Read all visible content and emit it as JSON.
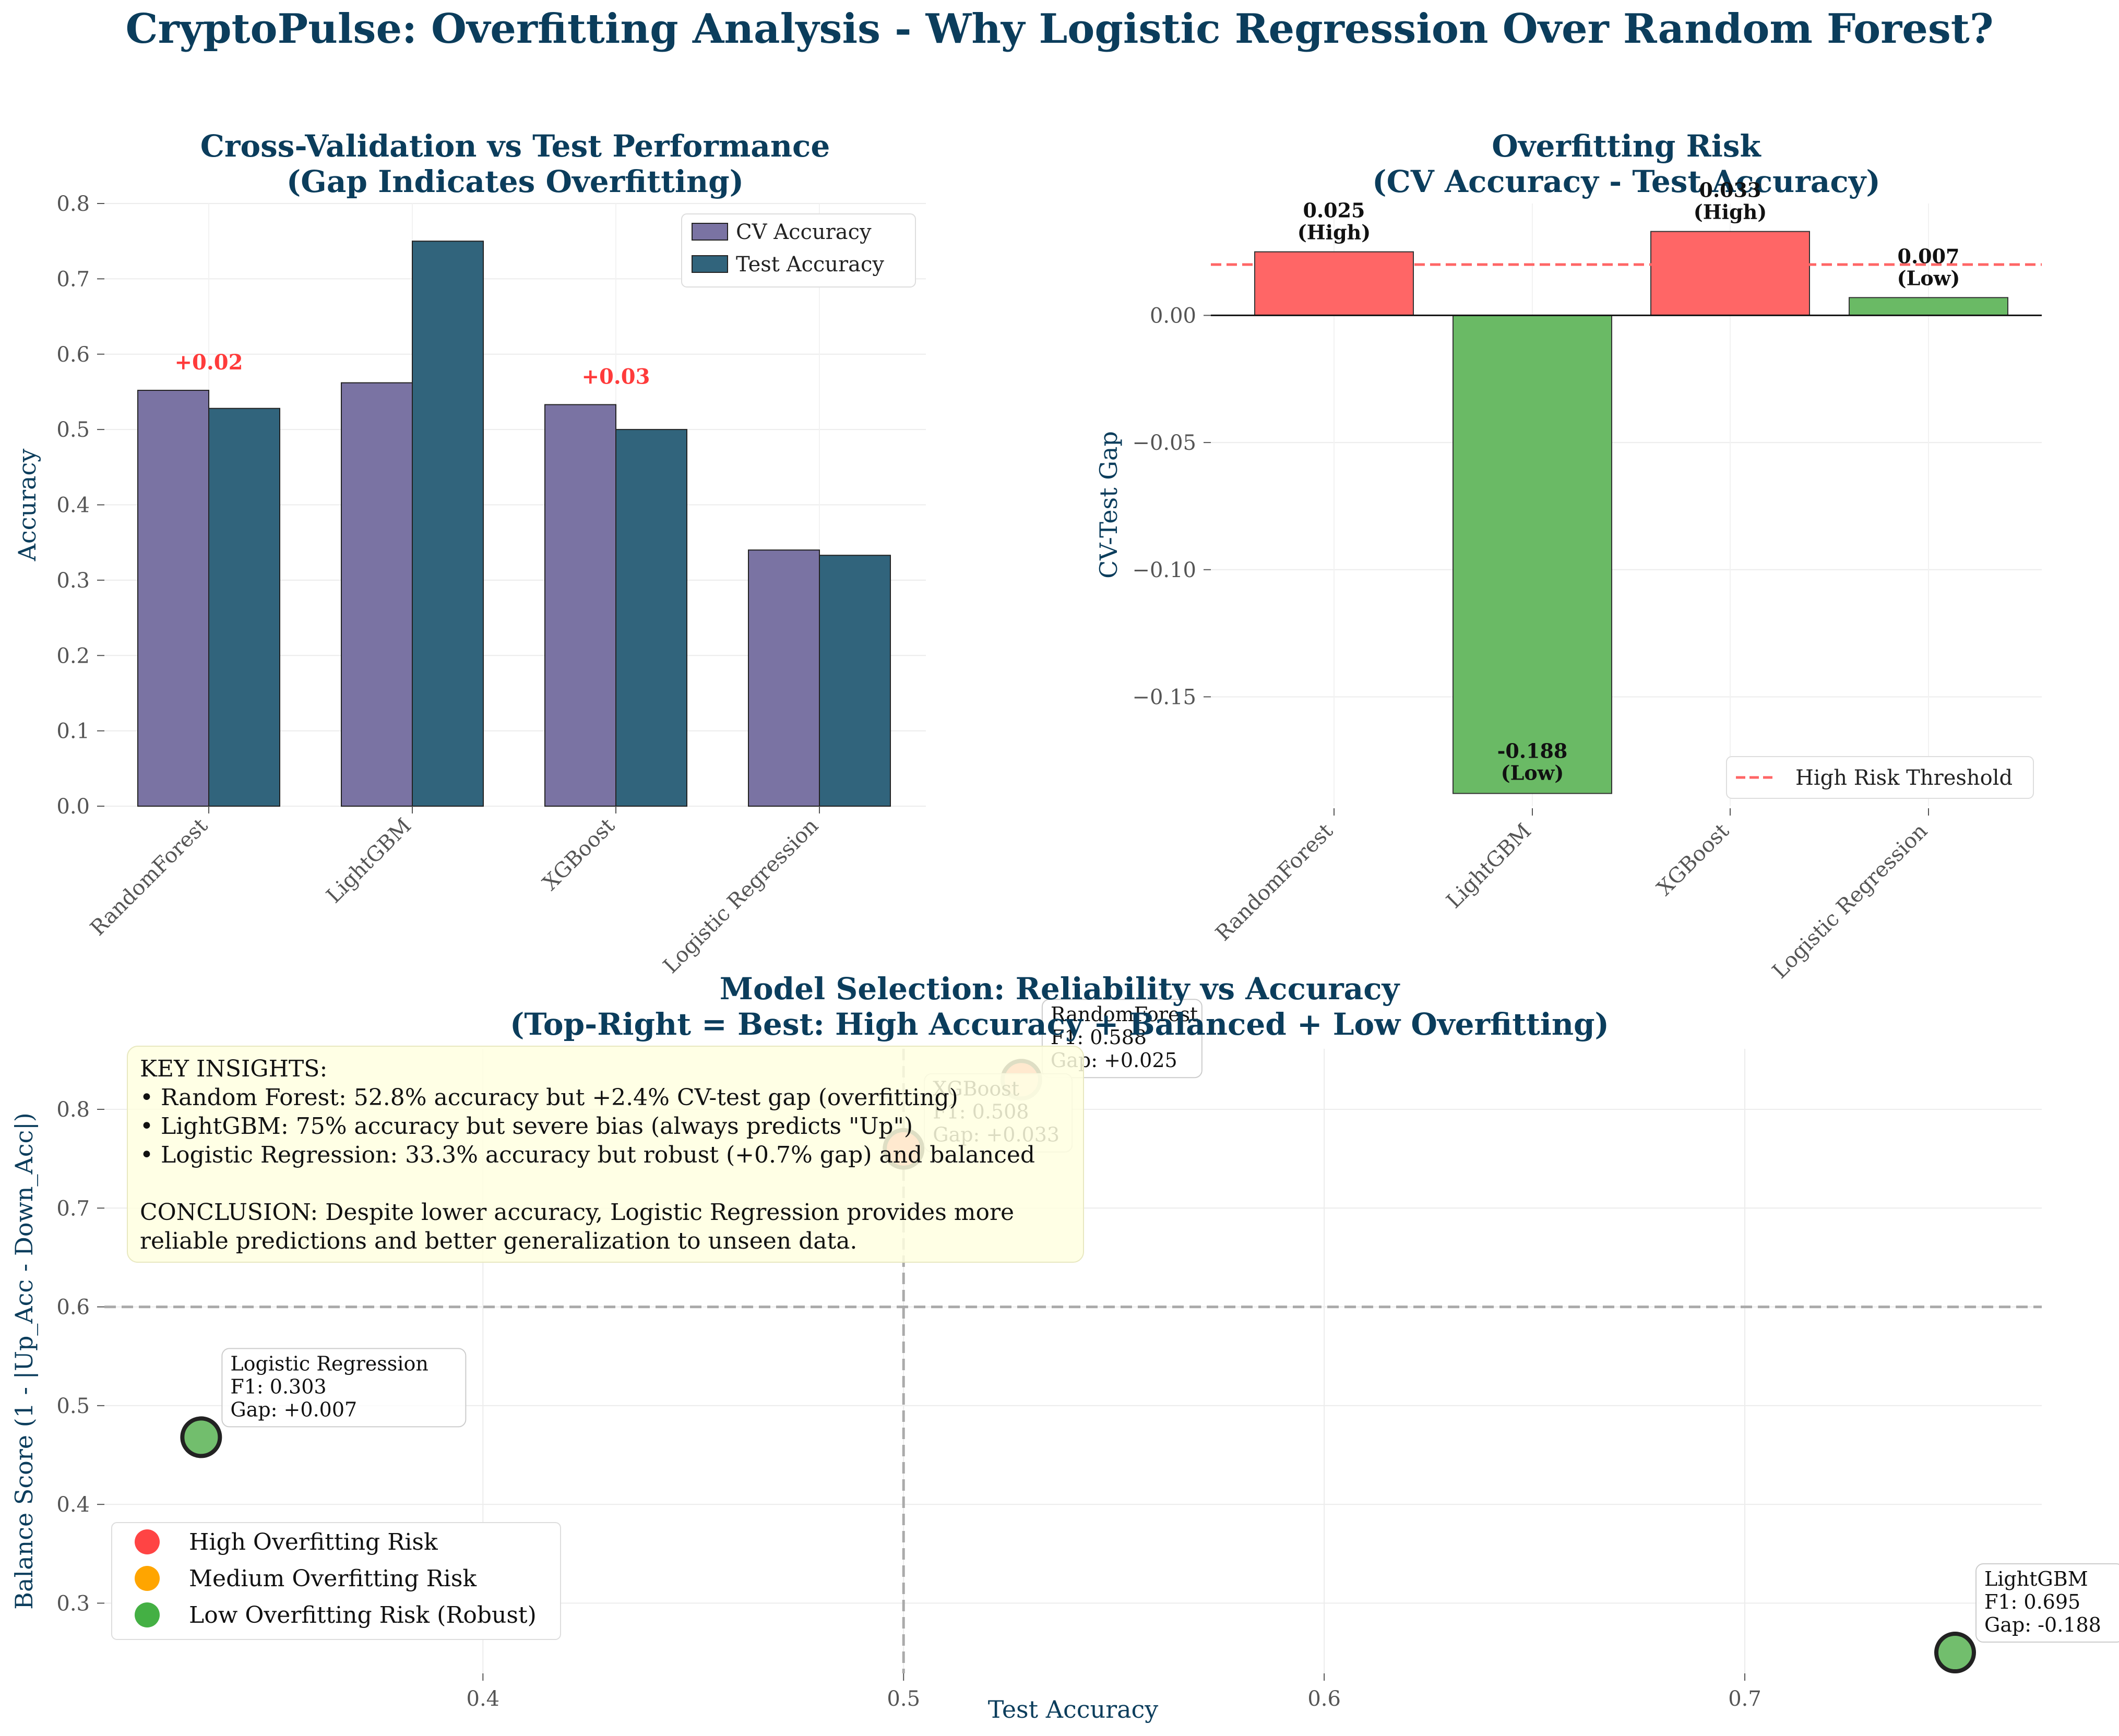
{
  "figure": {
    "suptitle": "CryptoPulse: Overfitting Analysis - Why Logistic Regression Over Random Forest?",
    "title_color": "#0b3d5c",
    "cv_color": "#7a73a3",
    "test_color": "#31647c",
    "high_color": "#ff6666",
    "low_color": "#6aba65",
    "gap_label_color": "#ff3b3b",
    "threshold_color": "#ff6666"
  },
  "chart_data": [
    {
      "type": "bar",
      "title": "Cross-Validation vs Test Performance\n(Gap Indicates Overfitting)",
      "xlabel": "",
      "ylabel": "Accuracy",
      "categories": [
        "RandomForest",
        "LightGBM",
        "XGBoost",
        "Logistic Regression"
      ],
      "series": [
        {
          "name": "CV Accuracy",
          "values": [
            0.552,
            0.562,
            0.533,
            0.34
          ]
        },
        {
          "name": "Test Accuracy",
          "values": [
            0.528,
            0.75,
            0.5,
            0.333
          ]
        }
      ],
      "annotations": [
        {
          "category": "RandomForest",
          "text": "+0.02",
          "anchor_value": 0.552
        },
        {
          "category": "XGBoost",
          "text": "+0.03",
          "anchor_value": 0.533
        }
      ],
      "ylim": [
        0,
        0.8
      ],
      "yticks": [
        "0.0",
        "0.1",
        "0.2",
        "0.3",
        "0.4",
        "0.5",
        "0.6",
        "0.7",
        "0.8"
      ],
      "grid": true,
      "legend": "top-right"
    },
    {
      "type": "bar",
      "title": "Overfitting Risk\n(CV Accuracy - Test Accuracy)",
      "xlabel": "",
      "ylabel": "CV-Test Gap",
      "categories": [
        "RandomForest",
        "LightGBM",
        "XGBoost",
        "Logistic Regression"
      ],
      "values": [
        0.025,
        -0.188,
        0.033,
        0.007
      ],
      "labels": [
        "0.025\n(High)",
        "-0.188\n(Low)",
        "0.033\n(High)",
        "0.007\n(Low)"
      ],
      "risk": [
        "high",
        "low",
        "high",
        "low"
      ],
      "threshold": {
        "value": 0.02,
        "label": "High Risk Threshold"
      },
      "ylim": [
        -0.193,
        0.044
      ],
      "yticks": [
        "0.00",
        "−0.05",
        "−0.10",
        "−0.15"
      ],
      "ytick_values": [
        0,
        -0.05,
        -0.1,
        -0.15
      ],
      "grid": true,
      "legend": "bottom-right"
    },
    {
      "type": "scatter",
      "title": "Model Selection: Reliability vs Accuracy\n(Top-Right = Best: High Accuracy + Balanced + Low Overfitting)",
      "xlabel": "Test Accuracy",
      "ylabel": "Balance Score (1 - |Up_Acc - Down_Acc|)",
      "xlim": [
        0.31,
        0.7706
      ],
      "ylim": [
        0.2289,
        0.8613
      ],
      "xticks": [
        "0.4",
        "0.5",
        "0.6",
        "0.7"
      ],
      "xtick_values": [
        0.4,
        0.5,
        0.6,
        0.7
      ],
      "yticks": [
        "0.3",
        "0.4",
        "0.5",
        "0.6",
        "0.7",
        "0.8"
      ],
      "ytick_values": [
        0.3,
        0.4,
        0.5,
        0.6,
        0.7,
        0.8
      ],
      "reference_lines": {
        "x": 0.5,
        "y": 0.6
      },
      "points": [
        {
          "name": "RandomForest",
          "x": 0.528,
          "y": 0.83,
          "f1": "F1: 0.588",
          "gap": "Gap: +0.025",
          "risk": "high"
        },
        {
          "name": "XGBoost",
          "x": 0.5,
          "y": 0.76,
          "f1": "F1: 0.508",
          "gap": "Gap: +0.033",
          "risk": "high"
        },
        {
          "name": "Logistic Regression",
          "x": 0.333,
          "y": 0.468,
          "f1": "F1: 0.303",
          "gap": "Gap: +0.007",
          "risk": "low"
        },
        {
          "name": "LightGBM",
          "x": 0.75,
          "y": 0.25,
          "f1": "F1: 0.695",
          "gap": "Gap: -0.188",
          "risk": "low"
        }
      ],
      "legend_entries": [
        {
          "label": "High Overfitting Risk",
          "color": "#ff4444"
        },
        {
          "label": "Medium Overfitting Risk",
          "color": "#ffa500"
        },
        {
          "label": "Low Overfitting Risk (Robust)",
          "color": "#44b044"
        }
      ],
      "legend": "bottom-left",
      "grid": true,
      "insights": [
        "KEY INSIGHTS:",
        "• Random Forest: 52.8% accuracy but +2.4% CV-test gap (overfitting)",
        "• LightGBM: 75% accuracy but severe bias (always predicts \"Up\")",
        "• Logistic Regression: 33.3% accuracy but robust (+0.7% gap) and balanced",
        "",
        "CONCLUSION: Despite lower accuracy, Logistic Regression provides more",
        "reliable predictions and better generalization to unseen data."
      ]
    }
  ]
}
